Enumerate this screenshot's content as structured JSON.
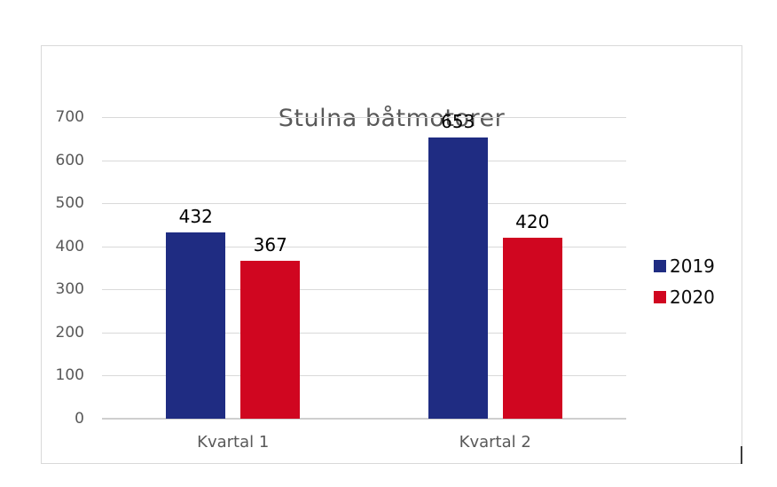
{
  "page": {
    "background": "#ffffff"
  },
  "chart_data": {
    "type": "bar",
    "title": "Stulna båtmotorer",
    "categories": [
      "Kvartal 1",
      "Kvartal 2"
    ],
    "series": [
      {
        "name": "2019",
        "color": "#1f2c82",
        "values": [
          432,
          653
        ]
      },
      {
        "name": "2020",
        "color": "#d00620",
        "values": [
          367,
          420
        ]
      }
    ],
    "ylim": [
      0,
      700
    ],
    "ytick_step": 100,
    "yticks": [
      "0",
      "100",
      "200",
      "300",
      "400",
      "500",
      "600",
      "700"
    ],
    "grid": true,
    "legend_position": "right",
    "colors": {
      "title": "#595959",
      "axis_labels": "#595959",
      "gridline": "#d9d9d9",
      "axis_line": "#cfcfcf",
      "data_label": "#000000",
      "frame_border": "#d9d9d9"
    }
  }
}
